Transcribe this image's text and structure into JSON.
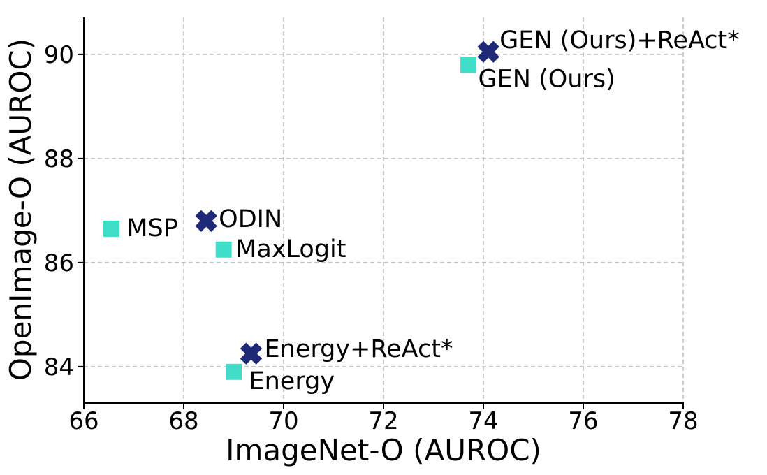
{
  "chart_data": {
    "type": "scatter",
    "title": "",
    "xlabel": "ImageNet-O (AUROC)",
    "ylabel": "OpenImage-O (AUROC)",
    "xlim": [
      66,
      78
    ],
    "ylim": [
      83.3,
      90.71
    ],
    "xticks": [
      66,
      68,
      70,
      72,
      74,
      76,
      78
    ],
    "yticks": [
      84,
      86,
      88,
      90
    ],
    "grid": {
      "on": true,
      "style": "dashed",
      "color": "#b0b0b0"
    },
    "axis_color": "#000000",
    "legend": "none",
    "series": [
      {
        "name": "square-markers",
        "marker": "square",
        "color": "#40DEC9",
        "points": [
          {
            "label": "MSP",
            "x": 66.55,
            "y": 86.65,
            "label_dx": 22,
            "label_dy": -2
          },
          {
            "label": "MaxLogit",
            "x": 68.8,
            "y": 86.25,
            "label_dx": 17,
            "label_dy": -2
          },
          {
            "label": "Energy",
            "x": 69.0,
            "y": 83.9,
            "label_dx": 22,
            "label_dy": 12
          },
          {
            "label": "GEN (Ours)",
            "x": 73.7,
            "y": 89.8,
            "label_dx": 14,
            "label_dy": 19
          }
        ]
      },
      {
        "name": "x-markers",
        "marker": "X",
        "color": "#1E2A78",
        "points": [
          {
            "label": "ODIN",
            "x": 68.45,
            "y": 86.8,
            "label_dx": 18,
            "label_dy": -4
          },
          {
            "label": "Energy+ReAct*",
            "x": 69.35,
            "y": 84.25,
            "label_dx": 19,
            "label_dy": -8
          },
          {
            "label": "GEN (Ours)+ReAct*",
            "x": 74.1,
            "y": 90.05,
            "label_dx": 16,
            "label_dy": -18
          }
        ]
      }
    ]
  }
}
